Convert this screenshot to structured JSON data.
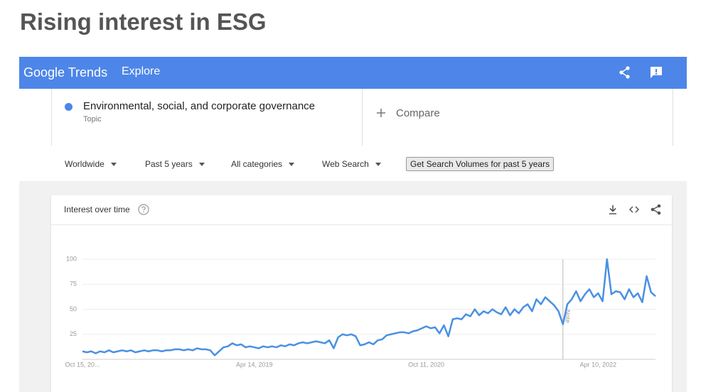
{
  "page": {
    "title": "Rising interest in ESG"
  },
  "header": {
    "brand": "Google Trends",
    "nav": "Explore"
  },
  "search": {
    "term_type": "Topic",
    "compare": "Compare"
  },
  "filters": [
    "Worldwide",
    "Past 5 years",
    "All categories",
    "Web Search"
  ],
  "volume_button": "Get Search Volumes for past 5 years",
  "chart_data": {
    "type": "line",
    "title": "Interest over time",
    "categories": [
      "Oct 15, 20...",
      null,
      null,
      null,
      null,
      null,
      null,
      null,
      null,
      null,
      null,
      null,
      null,
      null,
      null,
      null,
      null,
      null,
      null,
      null,
      null,
      null,
      null,
      null,
      null,
      null,
      null,
      null,
      null,
      null,
      null,
      null,
      null,
      null,
      null,
      null,
      null,
      null,
      null,
      "Apr 14, 2019",
      null,
      null,
      null,
      null,
      null,
      null,
      null,
      null,
      null,
      null,
      null,
      null,
      null,
      null,
      null,
      null,
      null,
      null,
      null,
      null,
      null,
      null,
      null,
      null,
      null,
      null,
      null,
      null,
      null,
      null,
      null,
      null,
      null,
      null,
      null,
      null,
      null,
      null,
      "Oct 11, 2020",
      null,
      null,
      null,
      null,
      null,
      null,
      null,
      null,
      null,
      null,
      null,
      null,
      null,
      null,
      null,
      null,
      null,
      null,
      null,
      null,
      null,
      null,
      null,
      null,
      null,
      null,
      null,
      null,
      null,
      null,
      null,
      null,
      null,
      null,
      null,
      null,
      null,
      null,
      "Apr 10, 2022",
      null,
      null,
      null,
      null,
      null,
      null,
      null,
      null,
      null,
      null,
      null,
      null,
      null
    ],
    "series": [
      {
        "name": "Environmental, social, and corporate governance",
        "color": "#4a90e2",
        "values": [
          8,
          7,
          8,
          6,
          8,
          7,
          9,
          7,
          8,
          9,
          8,
          9,
          7,
          8,
          9,
          8,
          9,
          9,
          8,
          9,
          9,
          10,
          10,
          9,
          10,
          9,
          11,
          10,
          10,
          9,
          4,
          8,
          12,
          13,
          16,
          14,
          15,
          12,
          13,
          12,
          11,
          13,
          12,
          13,
          12,
          14,
          13,
          15,
          14,
          16,
          17,
          16,
          17,
          18,
          17,
          16,
          19,
          11,
          22,
          25,
          24,
          25,
          23,
          14,
          15,
          17,
          15,
          19,
          20,
          24,
          25,
          26,
          27,
          27,
          26,
          28,
          29,
          31,
          33,
          31,
          32,
          26,
          34,
          23,
          40,
          41,
          40,
          45,
          43,
          50,
          44,
          48,
          46,
          50,
          47,
          45,
          52,
          44,
          50,
          46,
          52,
          55,
          48,
          60,
          55,
          62,
          58,
          54,
          48,
          35,
          55,
          60,
          68,
          58,
          65,
          70,
          62,
          66,
          58,
          100,
          65,
          68,
          67,
          60,
          70,
          62,
          66,
          57,
          83,
          67,
          63
        ]
      }
    ],
    "annotations": [
      {
        "text": "Note",
        "at": 109
      }
    ],
    "ylim": [
      0,
      100
    ],
    "yticks": [
      25,
      50,
      75,
      100
    ],
    "grid": true
  }
}
